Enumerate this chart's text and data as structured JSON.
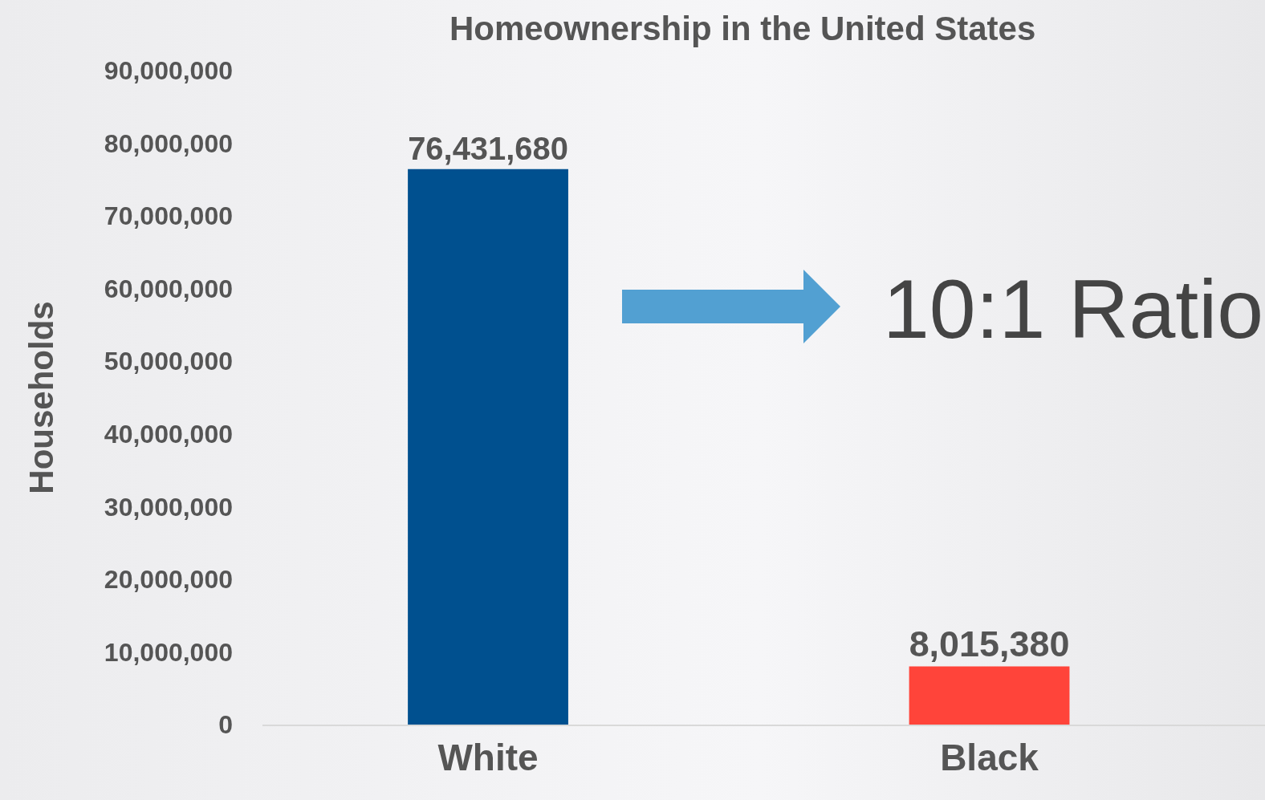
{
  "chart_data": {
    "type": "bar",
    "title": "Homeownership in the United States",
    "ylabel": "Households",
    "categories": [
      "White",
      "Black"
    ],
    "values": [
      76431680,
      8015380
    ],
    "colors": [
      "#00508f",
      "#ff443a"
    ],
    "value_labels": [
      "76,431,680",
      "8,015,380"
    ],
    "ylim": [
      0,
      90000000
    ],
    "yticks": [
      {
        "value": 0,
        "label": "0"
      },
      {
        "value": 10000000,
        "label": "10,000,000"
      },
      {
        "value": 20000000,
        "label": "20,000,000"
      },
      {
        "value": 30000000,
        "label": "30,000,000"
      },
      {
        "value": 40000000,
        "label": "40,000,000"
      },
      {
        "value": 50000000,
        "label": "50,000,000"
      },
      {
        "value": 60000000,
        "label": "60,000,000"
      },
      {
        "value": 70000000,
        "label": "70,000,000"
      },
      {
        "value": 80000000,
        "label": "80,000,000"
      },
      {
        "value": 90000000,
        "label": "90,000,000"
      }
    ],
    "annotations": [
      "10:1 Ratio"
    ]
  }
}
